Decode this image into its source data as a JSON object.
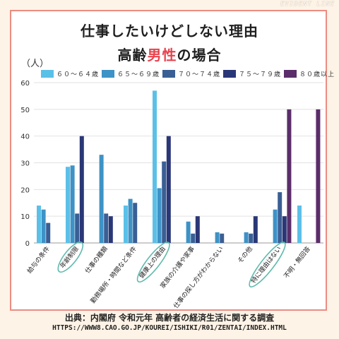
{
  "watermark": "EVIDENT LINE",
  "title_line1": "仕事したいけどしない理由",
  "title_line2_prefix": "高齢",
  "title_line2_accent": "男性",
  "title_line2_suffix": "の場合",
  "source_line1": "出典：内閣府 令和元年 高齢者の経済生活に関する調査",
  "source_line2": "HTTPS://WWW8.CAO.GO.JP/KOUREI/ISHIKI/R01/ZENTAI/INDEX.HTML",
  "colors": {
    "accent": "#e8434d",
    "frame": "#ec8c83",
    "highlight_circle": "#5fb9ad"
  },
  "chart_data": {
    "type": "bar",
    "unit_label": "（人）",
    "ylim": [
      0,
      60
    ],
    "yticks": [
      0,
      10,
      20,
      30,
      40,
      50,
      60
    ],
    "grid": "horizontal",
    "legend_position": "top",
    "categories": [
      "給与の条件",
      "年齢制限",
      "仕事の種類",
      "勤務場所・時間など条件",
      "健康上の理由",
      "家族の介護や家事",
      "仕事の探し方がわからない",
      "その他",
      "特に理由はない",
      "不明・無回答"
    ],
    "highlighted_categories": [
      "年齢制限",
      "健康上の理由",
      "特に理由はない"
    ],
    "series": [
      {
        "name": "６０～６４歳",
        "color": "#5bc0e8",
        "values": [
          14,
          28.5,
          0,
          14,
          57,
          0,
          0,
          0,
          0,
          14
        ]
      },
      {
        "name": "６５～６９歳",
        "color": "#3d92c6",
        "values": [
          12.5,
          29,
          33,
          16.5,
          20.5,
          8,
          4,
          4,
          12.5,
          0
        ]
      },
      {
        "name": "７０～７４歳",
        "color": "#3a5f95",
        "values": [
          7.5,
          11,
          11,
          15,
          30.5,
          3.5,
          3.5,
          3.5,
          19,
          0
        ]
      },
      {
        "name": "７５～７９歳",
        "color": "#2a3777",
        "values": [
          0,
          40,
          10,
          0,
          40,
          10,
          0,
          10,
          10,
          0
        ]
      },
      {
        "name": "８０歳以上",
        "color": "#5b2d6a",
        "values": [
          0,
          0,
          0,
          0,
          0,
          0,
          0,
          0,
          50,
          50
        ]
      }
    ]
  }
}
